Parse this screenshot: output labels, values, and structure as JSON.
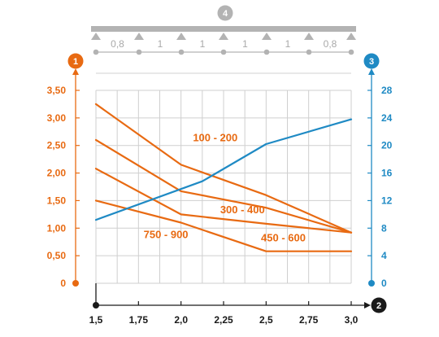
{
  "colors": {
    "orange": "#e86a12",
    "blue": "#1f8ac4",
    "grey": "#b3b3b3",
    "grid": "#cfcfcf",
    "black": "#1a1a1a"
  },
  "beam": {
    "badge": "4",
    "spans": [
      "0,8",
      "1",
      "1",
      "1",
      "1",
      "0,8"
    ]
  },
  "axis_badges": {
    "left": "1",
    "right": "3",
    "bottom": "2"
  },
  "chart_data": {
    "type": "line",
    "x_range": [
      1.5,
      3.0
    ],
    "x_ticks": [
      1.5,
      1.75,
      2.0,
      2.25,
      2.5,
      2.75,
      3.0
    ],
    "x_tick_labels": [
      "1,5",
      "1,75",
      "2,0",
      "2,25",
      "2,5",
      "2,75",
      "3,0"
    ],
    "y_left_range": [
      0,
      3.5
    ],
    "y_left_ticks": [
      0,
      0.5,
      1.0,
      1.5,
      2.0,
      2.5,
      3.0,
      3.5
    ],
    "y_left_tick_labels": [
      "0",
      "0,50",
      "1,00",
      "1,50",
      "2,00",
      "2,50",
      "3,00",
      "3,50"
    ],
    "y_right_range": [
      0,
      28
    ],
    "y_right_ticks": [
      0,
      4,
      8,
      12,
      16,
      20,
      24,
      28
    ],
    "y_right_tick_labels": [
      "0",
      "4",
      "8",
      "12",
      "16",
      "20",
      "24",
      "28"
    ],
    "grid": true,
    "series": [
      {
        "name": "100 - 200",
        "axis": "left",
        "color": "#e86a12",
        "x": [
          1.5,
          2.0,
          2.5,
          3.0
        ],
        "y": [
          3.25,
          2.15,
          1.6,
          0.92
        ]
      },
      {
        "name": "300 - 400",
        "axis": "left",
        "color": "#e86a12",
        "x": [
          1.5,
          2.0,
          2.5,
          3.0
        ],
        "y": [
          2.6,
          1.67,
          1.37,
          0.92
        ]
      },
      {
        "name": "750 - 900",
        "axis": "left",
        "color": "#e86a12",
        "x": [
          1.5,
          2.0,
          2.5,
          3.0
        ],
        "y": [
          2.08,
          1.25,
          1.08,
          0.92
        ]
      },
      {
        "name": "450 - 600",
        "axis": "left",
        "color": "#e86a12",
        "x": [
          1.5,
          2.0,
          2.5,
          3.0
        ],
        "y": [
          1.5,
          1.1,
          0.58,
          0.58
        ]
      },
      {
        "name": "",
        "axis": "right",
        "color": "#1f8ac4",
        "x": [
          1.5,
          2.125,
          2.5,
          3.0
        ],
        "y": [
          9.2,
          14.8,
          20.2,
          23.8
        ]
      }
    ],
    "annotations": [
      {
        "text": "100 - 200",
        "x": 2.07,
        "y": 2.58
      },
      {
        "text": "300 - 400",
        "x": 2.23,
        "y": 1.27
      },
      {
        "text": "750 - 900",
        "x": 1.78,
        "y": 0.82
      },
      {
        "text": "450 - 600",
        "x": 2.47,
        "y": 0.76
      }
    ]
  }
}
